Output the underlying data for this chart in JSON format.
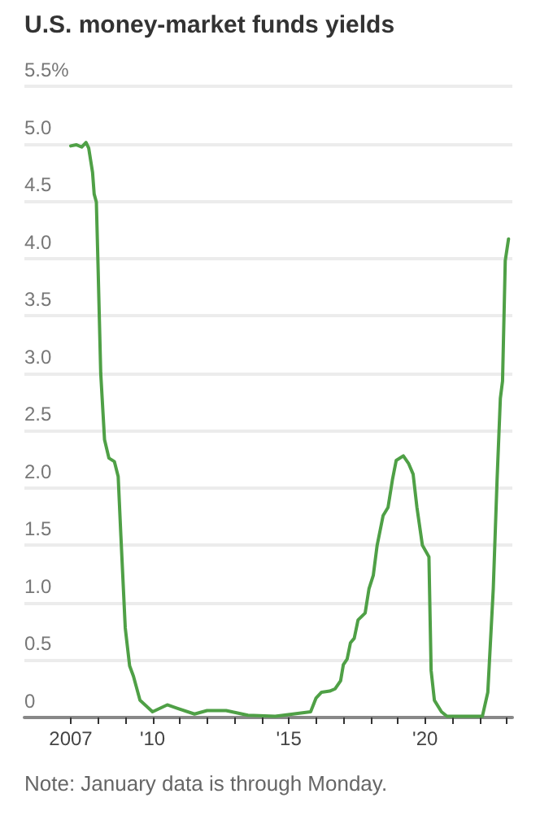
{
  "chart_data": {
    "type": "line",
    "title": "U.S. money-market funds yields",
    "annotations": [
      "Note: January data is through Monday."
    ],
    "series": [
      {
        "color": "#4fa046",
        "x": [
          2007.0,
          2007.2,
          2007.4,
          2007.56,
          2007.66,
          2007.8,
          2007.86,
          2007.94,
          2008.0,
          2008.1,
          2008.24,
          2008.4,
          2008.6,
          2008.74,
          2008.84,
          2009.0,
          2009.16,
          2009.3,
          2009.54,
          2010.0,
          2010.54,
          2010.9,
          2011.54,
          2012.0,
          2012.7,
          2013.5,
          2014.5,
          2014.8,
          2015.8,
          2016.0,
          2016.2,
          2016.5,
          2016.7,
          2016.9,
          2017.0,
          2017.14,
          2017.26,
          2017.4,
          2017.54,
          2017.8,
          2017.94,
          2018.1,
          2018.24,
          2018.46,
          2018.64,
          2018.8,
          2018.94,
          2019.2,
          2019.4,
          2019.56,
          2019.7,
          2019.9,
          2020.14,
          2020.22,
          2020.34,
          2020.6,
          2020.8,
          2022.1,
          2022.3,
          2022.5,
          2022.64,
          2022.76,
          2022.84,
          2022.94,
          2023.06
        ],
        "values": [
          4.98,
          4.99,
          4.97,
          5.01,
          4.96,
          4.75,
          4.56,
          4.49,
          3.95,
          3.0,
          2.42,
          2.26,
          2.23,
          2.1,
          1.58,
          0.78,
          0.45,
          0.36,
          0.15,
          0.05,
          0.11,
          0.08,
          0.03,
          0.06,
          0.06,
          0.02,
          0.01,
          0.02,
          0.05,
          0.17,
          0.22,
          0.23,
          0.25,
          0.32,
          0.46,
          0.51,
          0.65,
          0.69,
          0.85,
          0.91,
          1.12,
          1.24,
          1.5,
          1.76,
          1.83,
          2.07,
          2.24,
          2.28,
          2.21,
          2.12,
          1.83,
          1.5,
          1.4,
          0.41,
          0.15,
          0.05,
          0.01,
          0.01,
          0.22,
          1.12,
          2.07,
          2.78,
          2.93,
          3.98,
          4.17
        ]
      }
    ],
    "xlim": [
      2005.3,
      2023.2
    ],
    "xticks": [
      {
        "value": 2007,
        "label": "2007"
      },
      {
        "value": 2008,
        "label": null
      },
      {
        "value": 2009,
        "label": null
      },
      {
        "value": 2010,
        "label": "'10"
      },
      {
        "value": 2011,
        "label": null
      },
      {
        "value": 2012,
        "label": null
      },
      {
        "value": 2013,
        "label": null
      },
      {
        "value": 2014,
        "label": null
      },
      {
        "value": 2015,
        "label": "'15"
      },
      {
        "value": 2016,
        "label": null
      },
      {
        "value": 2017,
        "label": null
      },
      {
        "value": 2018,
        "label": null
      },
      {
        "value": 2019,
        "label": null
      },
      {
        "value": 2020,
        "label": "'20"
      },
      {
        "value": 2021,
        "label": null
      },
      {
        "value": 2022,
        "label": null
      },
      {
        "value": 2023,
        "label": null
      }
    ],
    "ylim": [
      0,
      5.5
    ],
    "yticks": [
      0,
      {
        "value": 0.5,
        "label": "0.5"
      },
      {
        "value": 1,
        "label": "1.0"
      },
      {
        "value": 1.5,
        "label": "1.5"
      },
      {
        "value": 2,
        "label": "2.0"
      },
      {
        "value": 2.5,
        "label": "2.5"
      },
      {
        "value": 3,
        "label": "3.0"
      },
      {
        "value": 3.5,
        "label": "3.5"
      },
      {
        "value": 4,
        "label": "4.0"
      },
      {
        "value": 4.5,
        "label": "4.5"
      },
      {
        "value": 5,
        "label": "5.0"
      },
      {
        "value": 5.5,
        "label": "5.5%"
      }
    ],
    "grid": "y",
    "marker": "none",
    "line_style": "solid"
  }
}
